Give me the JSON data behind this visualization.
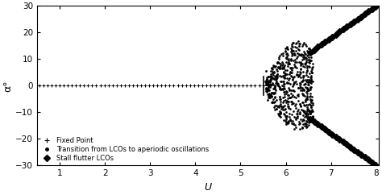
{
  "title": "",
  "xlabel": "U",
  "ylabel": "α°",
  "xlim": [
    0.5,
    8.05
  ],
  "ylim": [
    -30,
    30
  ],
  "xticks": [
    1,
    2,
    3,
    4,
    5,
    6,
    7,
    8
  ],
  "yticks": [
    -30,
    -20,
    -10,
    0,
    10,
    20,
    30
  ],
  "background_color": "#ffffff",
  "marker_color": "black",
  "figsize": [
    4.74,
    2.42
  ],
  "dpi": 100
}
